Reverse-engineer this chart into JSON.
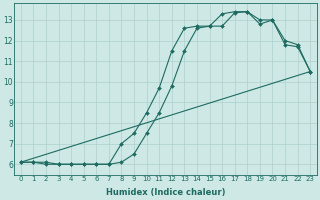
{
  "xlabel": "Humidex (Indice chaleur)",
  "ylabel": "",
  "xlim": [
    -0.5,
    23.5
  ],
  "ylim": [
    5.5,
    13.8
  ],
  "yticks": [
    6,
    7,
    8,
    9,
    10,
    11,
    12,
    13
  ],
  "xticks": [
    0,
    1,
    2,
    3,
    4,
    5,
    6,
    7,
    8,
    9,
    10,
    11,
    12,
    13,
    14,
    15,
    16,
    17,
    18,
    19,
    20,
    21,
    22,
    23
  ],
  "background_color": "#cde8e5",
  "grid_color": "#aed1cd",
  "line_color": "#1e6b61",
  "curve1_x": [
    0,
    1,
    2,
    3,
    4,
    5,
    6,
    7,
    8,
    9,
    10,
    11,
    12,
    13,
    14,
    15,
    16,
    17,
    18,
    19,
    20,
    21,
    22,
    23
  ],
  "curve1_y": [
    6.1,
    6.1,
    6.1,
    6.0,
    6.0,
    6.0,
    6.0,
    6.0,
    6.1,
    6.5,
    7.5,
    8.5,
    9.8,
    11.5,
    12.6,
    12.7,
    13.3,
    13.4,
    13.4,
    13.0,
    13.0,
    11.8,
    11.7,
    10.5
  ],
  "curve2_x": [
    0,
    1,
    2,
    3,
    4,
    5,
    6,
    7,
    8,
    9,
    10,
    11,
    12,
    13,
    14,
    15,
    16,
    17,
    18,
    19,
    20,
    21,
    22,
    23
  ],
  "curve2_y": [
    6.1,
    6.1,
    6.0,
    6.0,
    6.0,
    6.0,
    6.0,
    6.0,
    7.0,
    7.5,
    8.5,
    9.7,
    11.5,
    12.6,
    12.7,
    12.7,
    12.7,
    13.35,
    13.4,
    12.8,
    13.0,
    12.0,
    11.8,
    10.5
  ],
  "curve3_x": [
    0,
    23
  ],
  "curve3_y": [
    6.1,
    10.5
  ],
  "markersize": 2.0,
  "linewidth": 0.8,
  "figsize": [
    3.2,
    2.0
  ],
  "dpi": 100
}
